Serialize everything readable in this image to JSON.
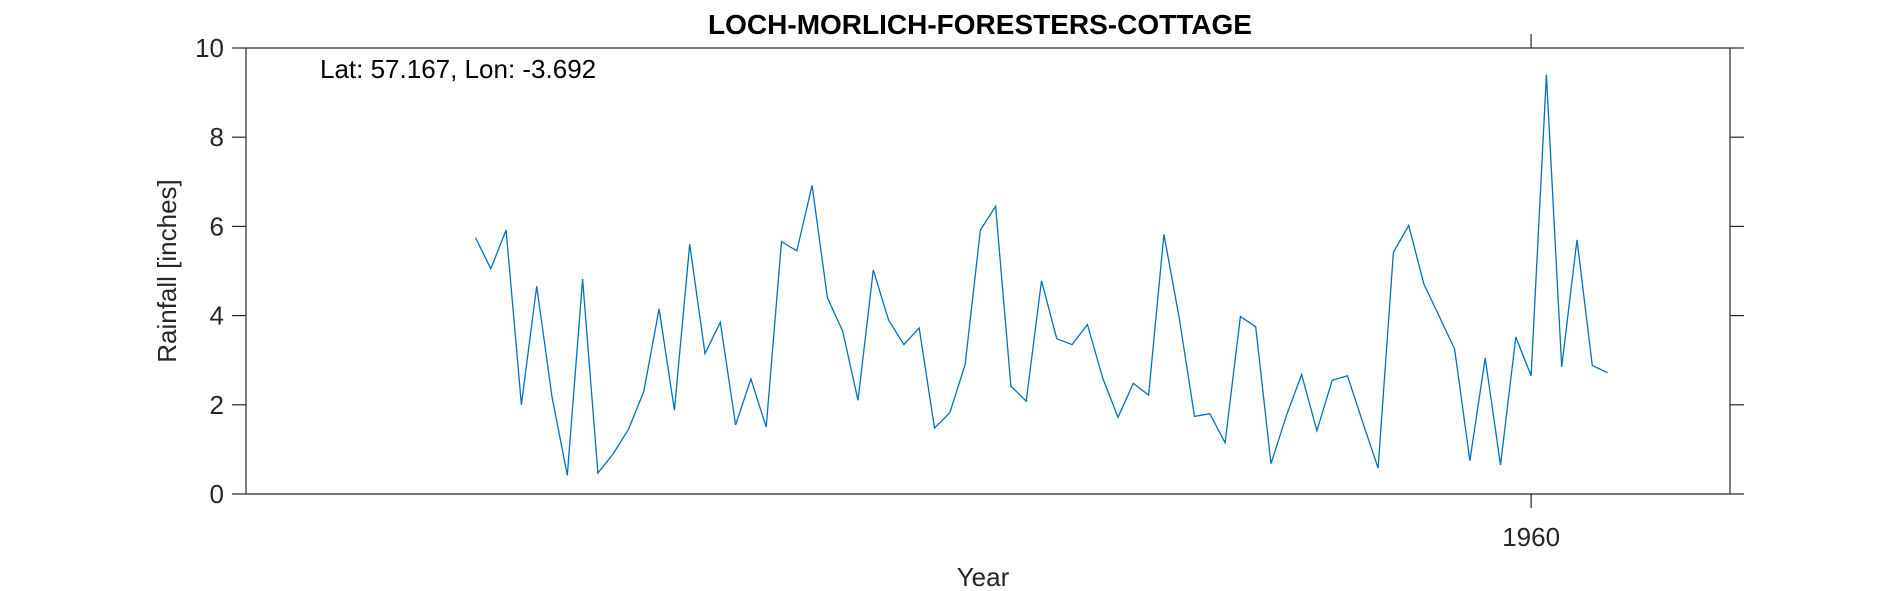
{
  "chart_data": {
    "type": "line",
    "title": "LOCH-MORLICH-FORESTERS-COTTAGE",
    "xlabel": "Year",
    "ylabel": "Rainfall [inches]",
    "annotation": "Lat: 57.167, Lon: -3.692",
    "xlim": [
      1876,
      1973
    ],
    "ylim": [
      0,
      10
    ],
    "xticks": [
      1960
    ],
    "xtick_labels": [
      "1960"
    ],
    "yticks": [
      0,
      2,
      4,
      6,
      8,
      10
    ],
    "ytick_labels": [
      "0",
      "2",
      "4",
      "6",
      "8",
      "10"
    ],
    "grid": false,
    "line_color": "#0072BD",
    "series": [
      {
        "x": [
          1891,
          1892,
          1893,
          1894,
          1895,
          1896,
          1897,
          1898,
          1899,
          1900,
          1901,
          1902,
          1903,
          1904,
          1905,
          1906,
          1907,
          1908,
          1909,
          1910,
          1911,
          1912,
          1913,
          1914,
          1915,
          1916,
          1917,
          1918,
          1919,
          1920,
          1921,
          1922,
          1923,
          1924,
          1925,
          1926,
          1927,
          1928,
          1929,
          1930,
          1931,
          1932,
          1933,
          1934,
          1935,
          1936,
          1937,
          1938,
          1939,
          1940,
          1941,
          1942,
          1943,
          1944,
          1945,
          1946,
          1947,
          1948,
          1949,
          1950,
          1951,
          1952,
          1953,
          1954,
          1955,
          1956,
          1957,
          1958,
          1959,
          1960,
          1961,
          1962,
          1963,
          1964,
          1965
        ],
        "y": [
          5.75,
          5.05,
          5.92,
          2.0,
          4.66,
          2.18,
          0.42,
          4.82,
          0.47,
          0.9,
          1.45,
          2.3,
          4.15,
          1.88,
          5.6,
          3.15,
          3.85,
          1.55,
          2.58,
          1.5,
          5.66,
          5.45,
          6.92,
          4.4,
          3.65,
          2.1,
          5.02,
          3.9,
          3.35,
          3.72,
          1.48,
          1.82,
          2.9,
          5.92,
          6.45,
          2.42,
          2.08,
          4.78,
          3.48,
          3.35,
          3.8,
          2.6,
          1.72,
          2.48,
          2.22,
          5.82,
          3.95,
          1.74,
          1.8,
          1.15,
          3.98,
          3.75,
          0.68,
          1.75,
          2.68,
          1.42,
          2.55,
          2.65,
          1.6,
          0.58,
          5.42,
          6.02,
          4.7,
          3.98,
          3.25,
          0.75,
          3.05,
          0.65,
          3.52,
          2.65,
          9.4,
          2.85,
          5.7,
          2.88,
          2.72
        ]
      }
    ]
  }
}
